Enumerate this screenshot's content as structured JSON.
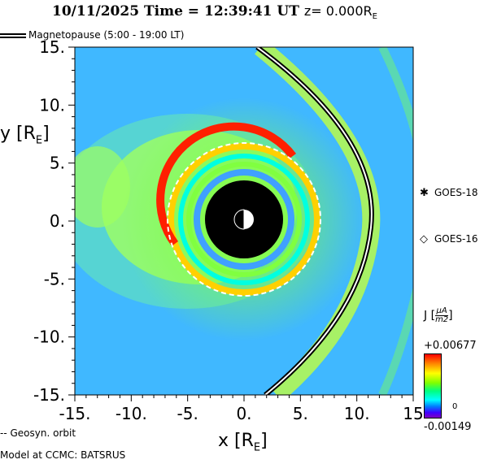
{
  "header": {
    "date": "10/11/2025",
    "time_label": "Time",
    "time_value": "12:39:41 UT",
    "z_label": "z=",
    "z_value": "0.000R",
    "z_sub": "E"
  },
  "legend": {
    "magnetopause": "Magnetopause (5:00 - 19:00 LT)",
    "geosyn": "Geosyn. orbit",
    "model": "Model at CCMC: BATSRUS"
  },
  "satellites": [
    {
      "name": "GOES-18",
      "marker": "asterisk-icon",
      "symbol": "✱"
    },
    {
      "name": "GOES-16",
      "marker": "diamond-icon",
      "symbol": "◇"
    }
  ],
  "colorbar": {
    "label": "J",
    "unit_num": "μA",
    "unit_den": "m2",
    "max": "+0.00677",
    "zero": "0",
    "min": "-0.00149",
    "colors": [
      "#ff0000",
      "#ff8000",
      "#ffff00",
      "#80ff00",
      "#00ff80",
      "#00ffff",
      "#0080ff",
      "#4000ff",
      "#8000c0"
    ]
  },
  "chart_data": {
    "type": "heatmap",
    "title": "10/11/2025 Time = 12:39:41 UT z= 0.000RE",
    "xlabel": "x [RE]",
    "ylabel": "y [RE]",
    "xlim": [
      -15,
      15
    ],
    "ylim": [
      -15,
      15
    ],
    "xticks": [
      -15,
      -10,
      -5,
      0,
      5,
      10,
      15
    ],
    "xtick_labels": [
      "-15.",
      "-10.",
      "-5.",
      "0.",
      "5.",
      "10.",
      "15"
    ],
    "yticks": [
      15,
      10,
      5,
      0,
      -5,
      -10,
      -15
    ],
    "ytick_labels": [
      "15.",
      "10.",
      "5.",
      "0.",
      "-5.",
      "-10.",
      "-15."
    ],
    "field": "J",
    "value_range": [
      -0.00149,
      0.00677
    ],
    "inner_boundary_radius": 3.5,
    "geosynchronous_radius": 6.6,
    "magnetopause_subsolar_x": 11.2,
    "background_color": "#40b4ff"
  }
}
